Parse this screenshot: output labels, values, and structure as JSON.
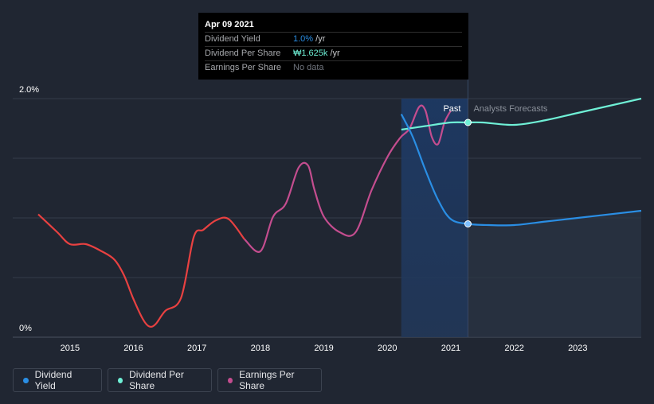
{
  "tooltip": {
    "date": "Apr 09 2021",
    "rows": [
      {
        "label": "Dividend Yield",
        "value": "1.0%",
        "suffix": " /yr",
        "color": "#2a8ee4"
      },
      {
        "label": "Dividend Per Share",
        "value": "₩1.625k",
        "suffix": " /yr",
        "color": "#6ff0d6"
      },
      {
        "label": "Earnings Per Share",
        "value": "No data",
        "suffix": "",
        "color": "#70757e"
      }
    ]
  },
  "labels": {
    "past": "Past",
    "forecast": "Analysts Forecasts"
  },
  "legend": [
    {
      "label": "Dividend Yield",
      "color": "#2a8ee4"
    },
    {
      "label": "Dividend Per Share",
      "color": "#6ff0d6"
    },
    {
      "label": "Earnings Per Share",
      "color": "#c44d8f"
    }
  ],
  "colors": {
    "eps_down": "#e84141",
    "eps_up": "#c44d8f",
    "dps": "#6ff0d6",
    "yield": "#2a8ee4",
    "forecast_fill": "#2b3545"
  },
  "chart_data": {
    "type": "line",
    "title": "",
    "x_unit": "year",
    "xlim": [
      2014.5,
      2024.0
    ],
    "ylim": [
      0,
      2.0
    ],
    "y_unit": "%",
    "ytick_labels": [
      {
        "v": 2.0,
        "label": "2.0%"
      },
      {
        "v": 0,
        "label": "0%"
      }
    ],
    "xticks": [
      2015,
      2016,
      2017,
      2018,
      2019,
      2020,
      2021,
      2022,
      2023
    ],
    "past_start": 2020.22,
    "past_end": 2021.27,
    "series": [
      {
        "name": "Earnings Per Share",
        "key": "eps",
        "x": [
          2014.5,
          2014.8,
          2015.0,
          2015.25,
          2015.5,
          2015.7,
          2015.85,
          2016.0,
          2016.15,
          2016.25,
          2016.35,
          2016.5,
          2016.75,
          2016.95,
          2017.1,
          2017.3,
          2017.5,
          2017.75,
          2018.0,
          2018.2,
          2018.4,
          2018.6,
          2018.75,
          2018.85,
          2019.0,
          2019.25,
          2019.5,
          2019.75,
          2020.0,
          2020.2,
          2020.35,
          2020.5,
          2020.6,
          2020.7,
          2020.8,
          2020.9,
          2021.0
        ],
        "y": [
          1.03,
          0.88,
          0.78,
          0.78,
          0.72,
          0.65,
          0.52,
          0.32,
          0.15,
          0.09,
          0.11,
          0.22,
          0.33,
          0.84,
          0.9,
          0.98,
          0.99,
          0.82,
          0.72,
          1.01,
          1.12,
          1.42,
          1.44,
          1.24,
          1.01,
          0.88,
          0.88,
          1.23,
          1.51,
          1.67,
          1.75,
          1.93,
          1.9,
          1.68,
          1.62,
          1.8,
          1.9
        ]
      },
      {
        "name": "Dividend Per Share",
        "key": "dps",
        "x": [
          2020.22,
          2020.6,
          2021.0,
          2021.27,
          2021.5,
          2022.0,
          2022.5,
          2023.0,
          2024.0
        ],
        "y": [
          1.74,
          1.77,
          1.8,
          1.8,
          1.8,
          1.78,
          1.82,
          1.88,
          2.0
        ]
      },
      {
        "name": "Dividend Yield",
        "key": "yield",
        "x": [
          2020.22,
          2020.4,
          2020.6,
          2020.8,
          2021.0,
          2021.27,
          2021.6,
          2022.0,
          2022.5,
          2023.0,
          2024.0
        ],
        "y": [
          1.87,
          1.68,
          1.4,
          1.15,
          0.99,
          0.95,
          0.94,
          0.94,
          0.97,
          1.0,
          1.06
        ]
      }
    ],
    "markers": [
      {
        "series": "dps",
        "x": 2021.27,
        "y": 1.8
      },
      {
        "series": "yield",
        "x": 2021.27,
        "y": 0.95
      }
    ]
  }
}
